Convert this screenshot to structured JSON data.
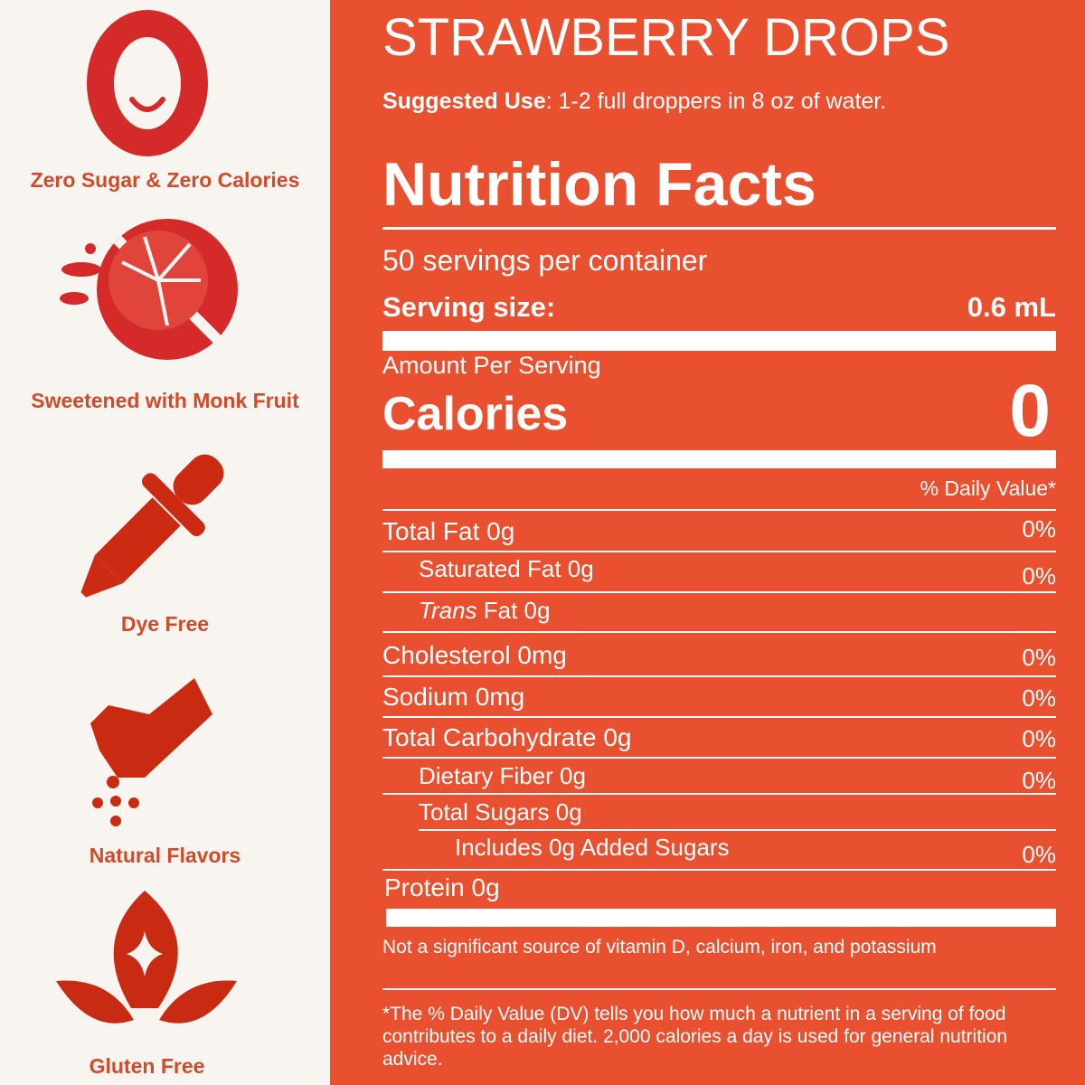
{
  "sidebar": {
    "features": [
      "Zero Sugar & Zero Calories",
      "Sweetened with Monk Fruit",
      "Dye Free",
      "Natural Flavors",
      "Gluten Free"
    ]
  },
  "header": {
    "title": "STRAWBERRY DROPS",
    "suggested_use_label": "Suggested Use",
    "suggested_use_text": ": 1-2 full droppers in 8 oz of water."
  },
  "label": {
    "title": "Nutrition Facts",
    "servings": "50 servings per container",
    "serving_size_label": "Serving size:",
    "serving_size_value": "0.6 mL",
    "amount_per_serving": "Amount Per Serving",
    "calories_label": "Calories",
    "calories_value": "0",
    "daily_value_header": "% Daily Value*",
    "rows": [
      {
        "label": "Total Fat 0g",
        "dv": "0%"
      },
      {
        "label": "Saturated Fat 0g",
        "dv": "0%"
      },
      {
        "italic": "Trans",
        "label": "Fat 0g"
      },
      {
        "label": "Cholesterol 0mg",
        "dv": "0%"
      },
      {
        "label": "Sodium 0mg",
        "dv": "0%"
      },
      {
        "label": "Total Carbohydrate 0g",
        "dv": "0%"
      },
      {
        "label": "Dietary Fiber 0g",
        "dv": "0%"
      },
      {
        "label": "Total Sugars 0g"
      },
      {
        "label": "Includes 0g Added Sugars",
        "dv": "0%"
      },
      {
        "label": "Protein 0g"
      }
    ],
    "note": "Not a significant source of vitamin D, calcium, iron, and potassium",
    "footnote": "*The % Daily Value (DV) tells you how much a nutrient in a serving of food contributes to a daily diet. 2,000 calories a day is used for general nutrition advice."
  }
}
